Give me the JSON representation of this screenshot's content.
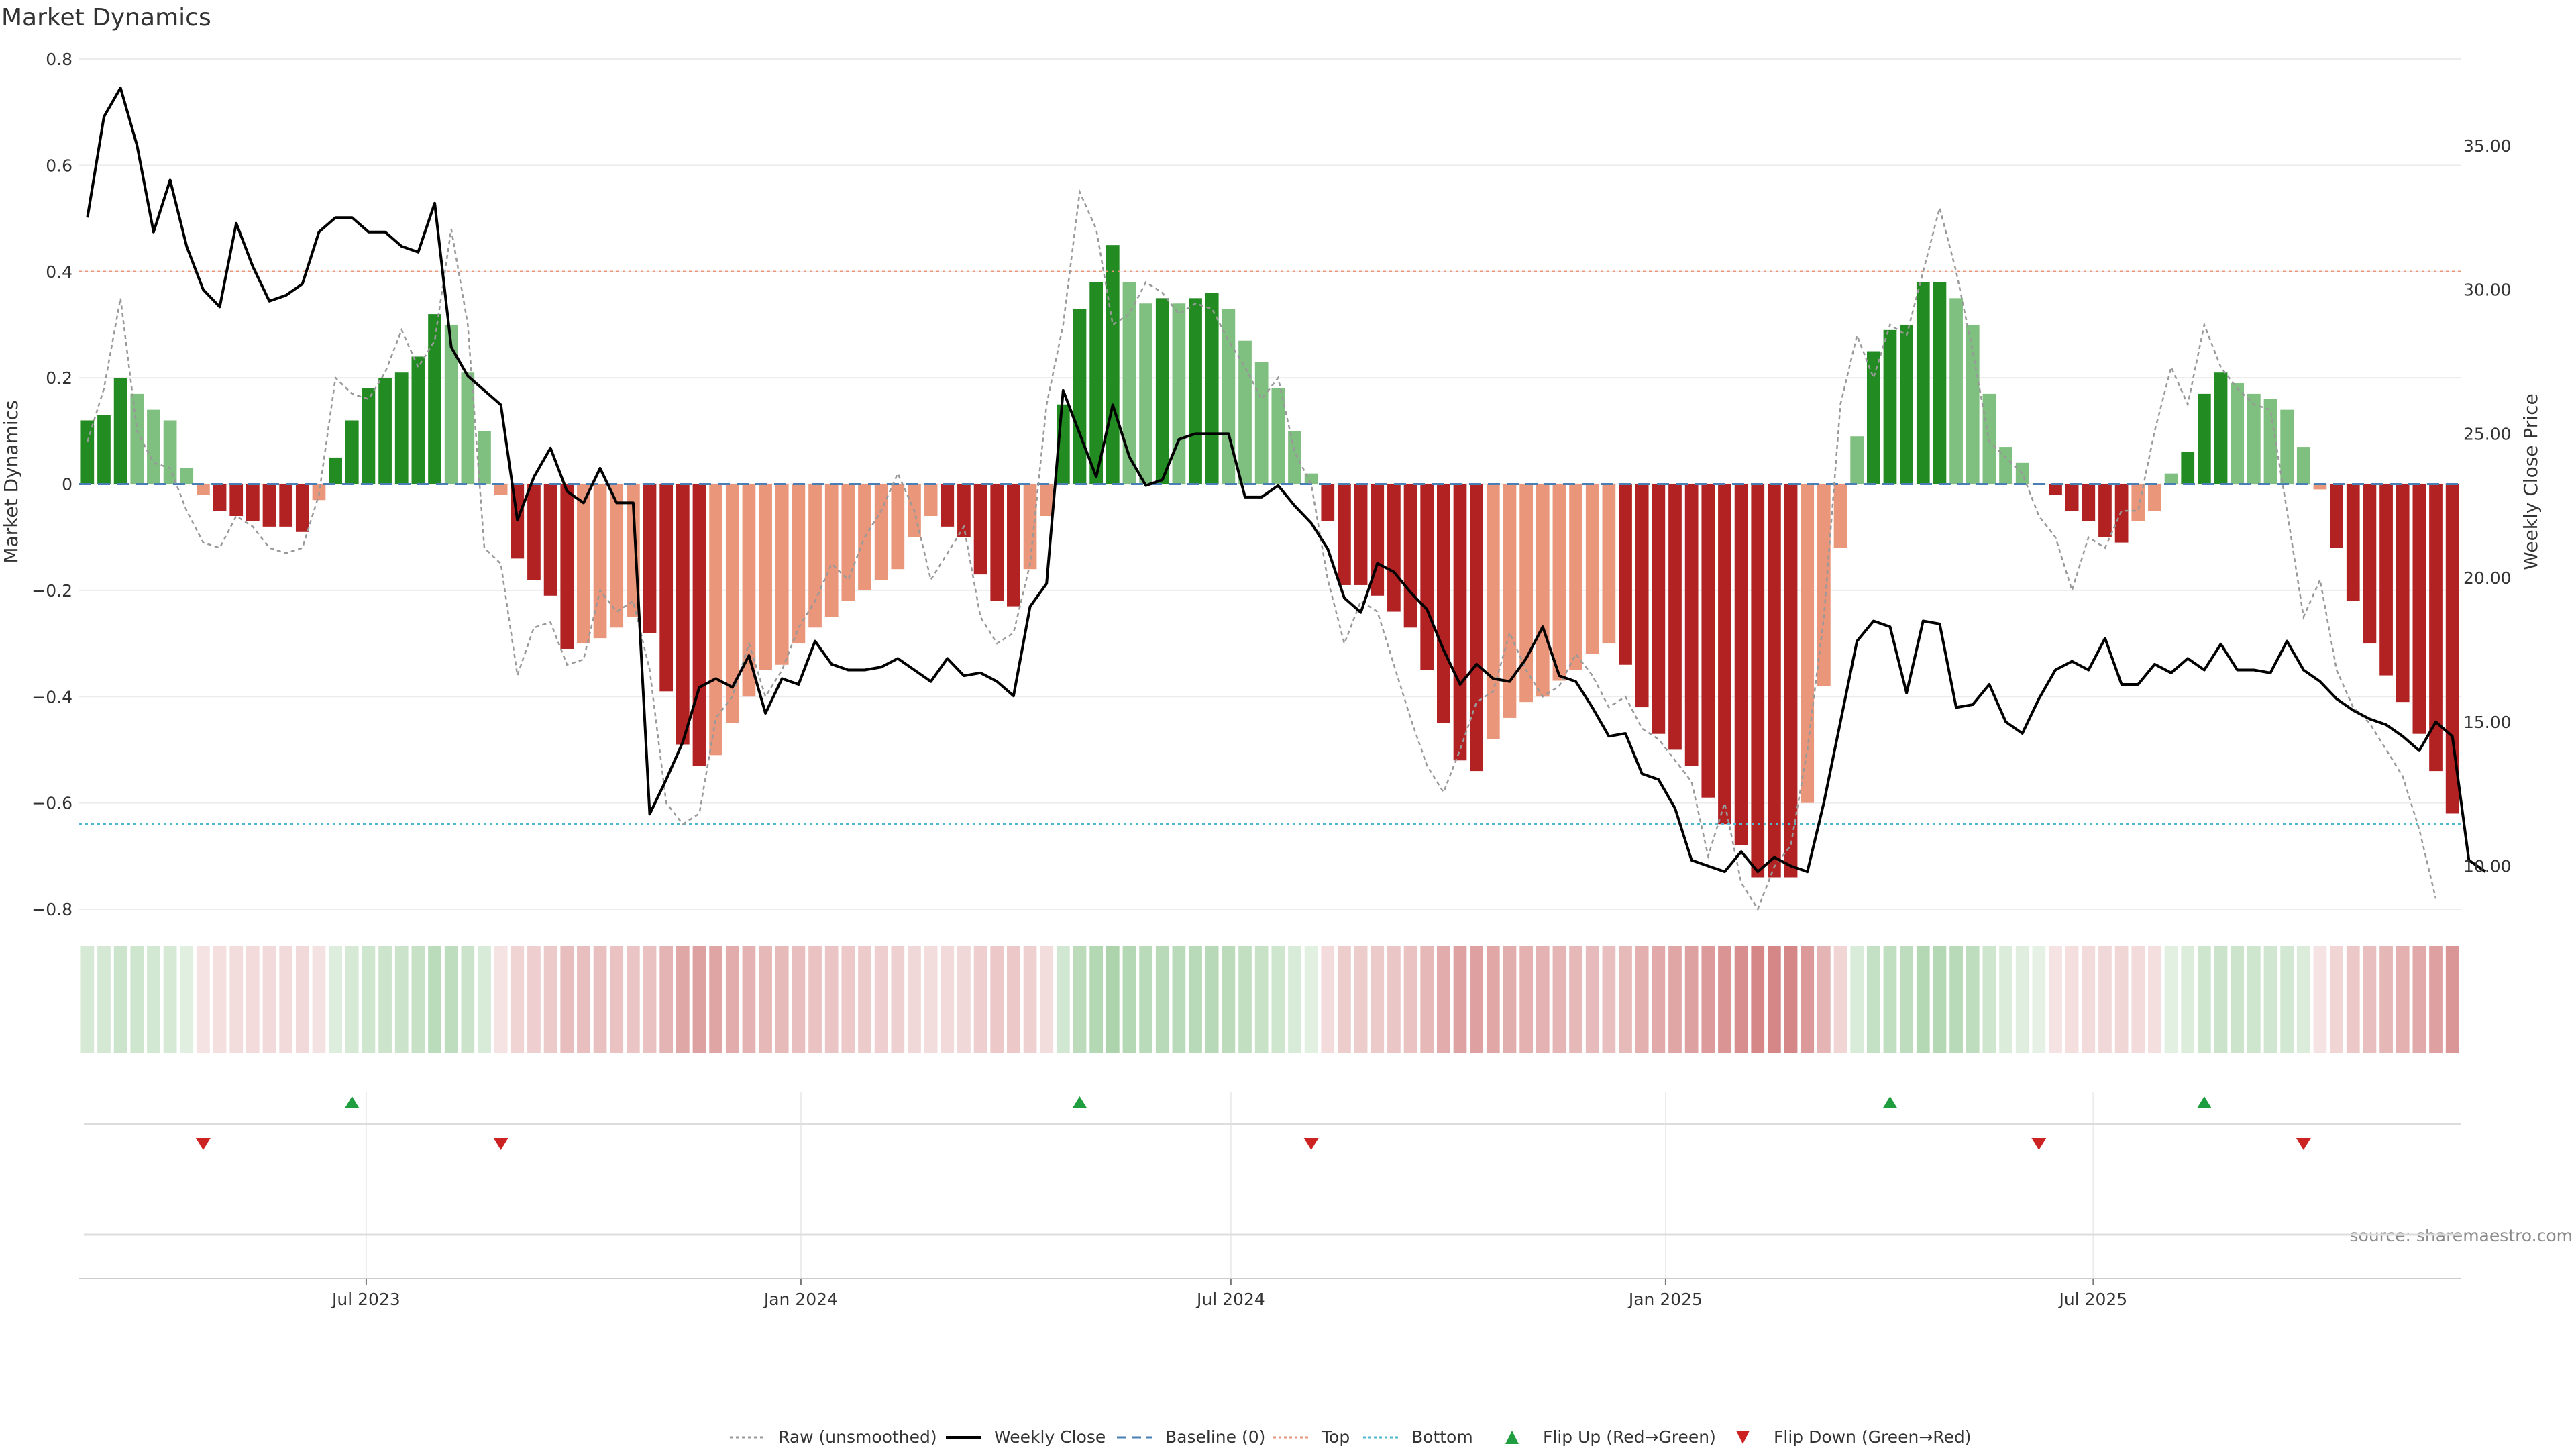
{
  "chart_data": {
    "type": "bar",
    "title": "Market Dynamics",
    "ylabel": "Market Dynamics",
    "y2label": "Weekly Close Price",
    "ylim": [
      -0.8,
      0.8
    ],
    "y2lim": [
      8.5,
      38.0
    ],
    "yticks": [
      "0.8",
      "0.6",
      "0.4",
      "0.2",
      "0",
      "−0.2",
      "−0.4",
      "−0.6",
      "−0.8"
    ],
    "y2ticks": [
      "35.00",
      "30.00",
      "25.00",
      "20.00",
      "15.00",
      "10.00"
    ],
    "xticks": [
      "Jul 2023",
      "Jan 2024",
      "Jul 2024",
      "Jan 2025",
      "Jul 2025"
    ],
    "xtick_dates": [
      "2023-07-01",
      "2024-01-01",
      "2024-07-01",
      "2025-01-01",
      "2025-07-01"
    ],
    "first_week": "2023-03-05",
    "grid": true,
    "legend_position": "bottom",
    "source": "source: sharemaestro.com",
    "thresholds": {
      "baseline": 0,
      "top": 0.4,
      "bottom": -0.64
    },
    "colors": {
      "strong_green": "#228b22",
      "weak_green": "#7fbf7f",
      "strong_red": "#b22222",
      "weak_red": "#e9967a",
      "close_line": "#000000",
      "raw_line": "#999999",
      "baseline": "#4a7fb5",
      "top": "#e9967a",
      "bottom": "#4fb8d0",
      "flip_up": "#1e9e3e",
      "flip_down": "#cc2222"
    },
    "series": [
      {
        "name": "Market Dynamics",
        "values": [
          0.12,
          0.13,
          0.2,
          0.17,
          0.14,
          0.12,
          0.03,
          -0.02,
          -0.05,
          -0.06,
          -0.07,
          -0.08,
          -0.08,
          -0.09,
          -0.03,
          0.05,
          0.12,
          0.18,
          0.2,
          0.21,
          0.24,
          0.32,
          0.3,
          0.21,
          0.1,
          -0.02,
          -0.14,
          -0.18,
          -0.21,
          -0.31,
          -0.3,
          -0.29,
          -0.27,
          -0.25,
          -0.28,
          -0.39,
          -0.49,
          -0.53,
          -0.51,
          -0.45,
          -0.4,
          -0.35,
          -0.34,
          -0.3,
          -0.27,
          -0.25,
          -0.22,
          -0.2,
          -0.18,
          -0.16,
          -0.1,
          -0.06,
          -0.08,
          -0.1,
          -0.17,
          -0.22,
          -0.23,
          -0.16,
          -0.06,
          0.15,
          0.33,
          0.38,
          0.45,
          0.38,
          0.34,
          0.35,
          0.34,
          0.35,
          0.36,
          0.33,
          0.27,
          0.23,
          0.18,
          0.1,
          0.02,
          -0.07,
          -0.19,
          -0.19,
          -0.21,
          -0.24,
          -0.27,
          -0.35,
          -0.45,
          -0.52,
          -0.54,
          -0.48,
          -0.44,
          -0.41,
          -0.4,
          -0.37,
          -0.35,
          -0.32,
          -0.3,
          -0.34,
          -0.42,
          -0.47,
          -0.5,
          -0.53,
          -0.59,
          -0.64,
          -0.68,
          -0.74,
          -0.74,
          -0.74,
          -0.6,
          -0.38,
          -0.12,
          0.09,
          0.25,
          0.29,
          0.3,
          0.38,
          0.38,
          0.35,
          0.3,
          0.17,
          0.07,
          0.04,
          0.0,
          -0.02,
          -0.05,
          -0.07,
          -0.1,
          -0.11,
          -0.07,
          -0.05,
          0.02,
          0.06,
          0.17,
          0.21,
          0.19,
          0.17,
          0.16,
          0.14,
          0.07,
          -0.01,
          -0.12,
          -0.22,
          -0.3,
          -0.36,
          -0.41,
          -0.47,
          -0.54,
          -0.62
        ]
      },
      {
        "name": "Raw (unsmoothed)",
        "values": [
          0.08,
          0.18,
          0.35,
          0.1,
          0.04,
          0.03,
          -0.05,
          -0.11,
          -0.12,
          -0.06,
          -0.08,
          -0.12,
          -0.13,
          -0.12,
          -0.02,
          0.2,
          0.17,
          0.16,
          0.21,
          0.29,
          0.22,
          0.27,
          0.48,
          0.3,
          -0.12,
          -0.15,
          -0.36,
          -0.27,
          -0.26,
          -0.34,
          -0.33,
          -0.2,
          -0.24,
          -0.22,
          -0.35,
          -0.6,
          -0.64,
          -0.62,
          -0.44,
          -0.4,
          -0.3,
          -0.4,
          -0.35,
          -0.27,
          -0.22,
          -0.15,
          -0.18,
          -0.1,
          -0.05,
          0.02,
          -0.05,
          -0.18,
          -0.13,
          -0.08,
          -0.25,
          -0.3,
          -0.28,
          -0.15,
          0.15,
          0.3,
          0.55,
          0.48,
          0.3,
          0.32,
          0.38,
          0.36,
          0.32,
          0.34,
          0.33,
          0.27,
          0.22,
          0.16,
          0.2,
          0.06,
          0.0,
          -0.18,
          -0.3,
          -0.22,
          -0.24,
          -0.34,
          -0.44,
          -0.53,
          -0.58,
          -0.5,
          -0.41,
          -0.39,
          -0.28,
          -0.35,
          -0.4,
          -0.38,
          -0.32,
          -0.36,
          -0.42,
          -0.4,
          -0.46,
          -0.48,
          -0.52,
          -0.56,
          -0.7,
          -0.6,
          -0.75,
          -0.8,
          -0.72,
          -0.68,
          -0.5,
          -0.25,
          0.15,
          0.28,
          0.2,
          0.3,
          0.28,
          0.4,
          0.52,
          0.4,
          0.25,
          0.08,
          0.05,
          0.02,
          -0.06,
          -0.1,
          -0.2,
          -0.1,
          -0.12,
          -0.05,
          -0.05,
          0.1,
          0.22,
          0.15,
          0.3,
          0.22,
          0.18,
          0.15,
          0.14,
          -0.05,
          -0.25,
          -0.18,
          -0.35,
          -0.42,
          -0.45,
          -0.5,
          -0.55,
          -0.65,
          -0.78
        ]
      },
      {
        "name": "Weekly Close",
        "values": [
          32.5,
          36.0,
          37.0,
          35.0,
          32.0,
          33.8,
          31.5,
          30.0,
          29.4,
          32.3,
          30.8,
          29.6,
          29.8,
          30.2,
          32.0,
          32.5,
          32.5,
          32.0,
          32.0,
          31.5,
          31.3,
          33.0,
          28.0,
          27.0,
          26.5,
          26.0,
          22.0,
          23.5,
          24.5,
          23.0,
          22.6,
          23.8,
          22.6,
          22.6,
          11.8,
          13.0,
          14.3,
          16.2,
          16.5,
          16.2,
          17.3,
          15.3,
          16.5,
          16.3,
          17.8,
          17.0,
          16.8,
          16.8,
          16.9,
          17.2,
          16.8,
          16.4,
          17.2,
          16.6,
          16.7,
          16.4,
          15.9,
          19.0,
          19.8,
          26.5,
          25.0,
          23.5,
          26.0,
          24.2,
          23.2,
          23.4,
          24.8,
          25.0,
          25.0,
          25.0,
          22.8,
          22.8,
          23.2,
          22.5,
          21.9,
          21.0,
          19.3,
          18.8,
          20.5,
          20.2,
          19.5,
          18.9,
          17.5,
          16.3,
          17.0,
          16.5,
          16.4,
          17.2,
          18.3,
          16.6,
          16.4,
          15.5,
          14.5,
          14.6,
          13.2,
          13.0,
          12.0,
          10.2,
          10.0,
          9.8,
          10.5,
          9.8,
          10.3,
          10.0,
          9.8,
          12.2,
          15.0,
          17.8,
          18.5,
          18.3,
          16.0,
          18.5,
          18.4,
          15.5,
          15.6,
          16.3,
          15.0,
          14.6,
          15.8,
          16.8,
          17.1,
          16.8,
          17.9,
          16.3,
          16.3,
          17.0,
          16.7,
          17.2,
          16.8,
          17.7,
          16.8,
          16.8,
          16.7,
          17.8,
          16.8,
          16.4,
          15.8,
          15.4,
          15.1,
          14.9,
          14.5,
          14.0,
          15.0,
          14.5,
          10.2,
          9.8
        ]
      }
    ],
    "flip_up_weeks": [
      16,
      60,
      109,
      128
    ],
    "flip_down_weeks": [
      7,
      25,
      74,
      118,
      134
    ],
    "legend": [
      {
        "label": "Raw (unsmoothed)",
        "icon": "dotted-line-icon"
      },
      {
        "label": "Weekly Close",
        "icon": "solid-line-icon"
      },
      {
        "label": "Baseline (0)",
        "icon": "dashed-line-icon"
      },
      {
        "label": "Top",
        "icon": "dotted-line-icon"
      },
      {
        "label": "Bottom",
        "icon": "dotted-line-icon"
      },
      {
        "label": "Flip Up (Red→Green)",
        "icon": "triangle-up-icon"
      },
      {
        "label": "Flip Down (Green→Red)",
        "icon": "triangle-down-icon"
      }
    ]
  }
}
